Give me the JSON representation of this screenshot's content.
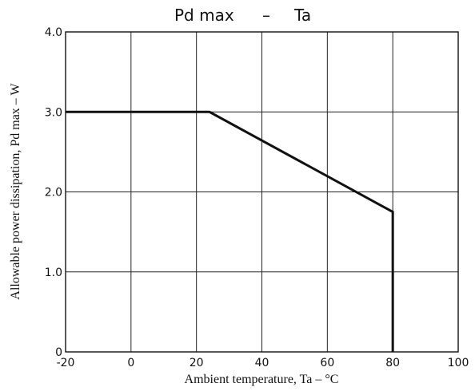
{
  "chart_data": {
    "type": "line",
    "title_left": "Pd max",
    "title_dash": "–",
    "title_right": "Ta",
    "xlabel": "Ambient temperature, Ta – °C",
    "ylabel": "Allowable power dissipation, Pd max – W",
    "xlim": [
      -20,
      100
    ],
    "ylim": [
      0,
      4.0
    ],
    "x_ticks": [
      {
        "value": -20,
        "label": "-20"
      },
      {
        "value": 0,
        "label": "0"
      },
      {
        "value": 20,
        "label": "20"
      },
      {
        "value": 40,
        "label": "40"
      },
      {
        "value": 60,
        "label": "60"
      },
      {
        "value": 80,
        "label": "80"
      },
      {
        "value": 100,
        "label": "100"
      }
    ],
    "y_ticks": [
      {
        "value": 0,
        "label": "0"
      },
      {
        "value": 1.0,
        "label": "1.0"
      },
      {
        "value": 2.0,
        "label": "2.0"
      },
      {
        "value": 3.0,
        "label": "3.0"
      },
      {
        "value": 4.0,
        "label": "4.0"
      }
    ],
    "grid": true,
    "series": [
      {
        "x": [
          -20,
          24,
          80,
          80
        ],
        "y": [
          3.0,
          3.0,
          1.75,
          0
        ]
      }
    ]
  }
}
